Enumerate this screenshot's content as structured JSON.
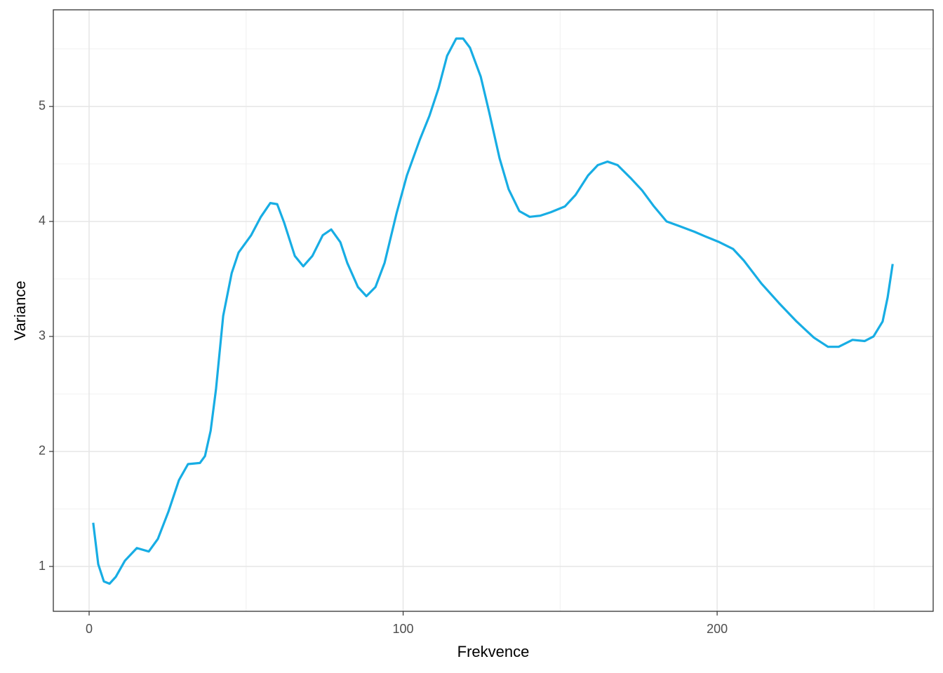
{
  "chart_data": {
    "type": "line",
    "x_label": "Frekvence",
    "y_label": "Variance",
    "x": [
      1.3,
      2.9,
      4.7,
      6.5,
      8.5,
      11.4,
      15.2,
      19,
      21.9,
      25.3,
      28.6,
      31.5,
      35.3,
      36.9,
      38.7,
      40.4,
      42.7,
      45.4,
      47.6,
      51.6,
      54.7,
      57.7,
      59.9,
      62.1,
      65.5,
      68.2,
      71.1,
      74.4,
      77.1,
      80,
      82.2,
      85.6,
      88.3,
      91.2,
      94.1,
      97.9,
      101.2,
      105.3,
      108.4,
      111.3,
      114,
      116.9,
      119.1,
      121.3,
      124.7,
      127.4,
      130.7,
      133.6,
      137,
      140.3,
      143.7,
      147,
      151.5,
      154.9,
      158.9,
      162,
      165.1,
      168.3,
      172.7,
      176.1,
      179.9,
      183.9,
      187.9,
      192.8,
      196.2,
      200.7,
      205.1,
      208.5,
      214.1,
      219.7,
      225.3,
      230.8,
      235.3,
      238.7,
      243.1,
      247,
      249.8,
      252.7,
      254.3,
      255.9
    ],
    "series": [
      {
        "color": "#17ade4",
        "values": [
          1.38,
          1.02,
          0.87,
          0.85,
          0.91,
          1.05,
          1.16,
          1.13,
          1.24,
          1.48,
          1.75,
          1.89,
          1.9,
          1.96,
          2.18,
          2.54,
          3.18,
          3.55,
          3.73,
          3.88,
          4.04,
          4.16,
          4.15,
          3.99,
          3.7,
          3.61,
          3.7,
          3.88,
          3.93,
          3.82,
          3.64,
          3.43,
          3.35,
          3.43,
          3.64,
          4.07,
          4.4,
          4.71,
          4.92,
          5.16,
          5.44,
          5.59,
          5.59,
          5.51,
          5.26,
          4.95,
          4.55,
          4.28,
          4.09,
          4.04,
          4.05,
          4.08,
          4.13,
          4.23,
          4.4,
          4.49,
          4.52,
          4.49,
          4.37,
          4.27,
          4.13,
          4.0,
          3.96,
          3.91,
          3.87,
          3.82,
          3.76,
          3.66,
          3.46,
          3.29,
          3.13,
          2.99,
          2.91,
          2.91,
          2.97,
          2.96,
          3.0,
          3.13,
          3.34,
          3.63
        ]
      }
    ],
    "xlim": [
      -11.4,
      268.8
    ],
    "ylim": [
      0.61,
      5.84
    ],
    "xticks": [
      0,
      100,
      200
    ],
    "yticks": [
      1,
      2,
      3,
      4,
      5
    ],
    "x_minor_grid": [
      50,
      150,
      250
    ],
    "y_minor_grid": [
      1.5,
      2.5,
      3.5,
      4.5,
      5.5
    ],
    "grid": true
  }
}
